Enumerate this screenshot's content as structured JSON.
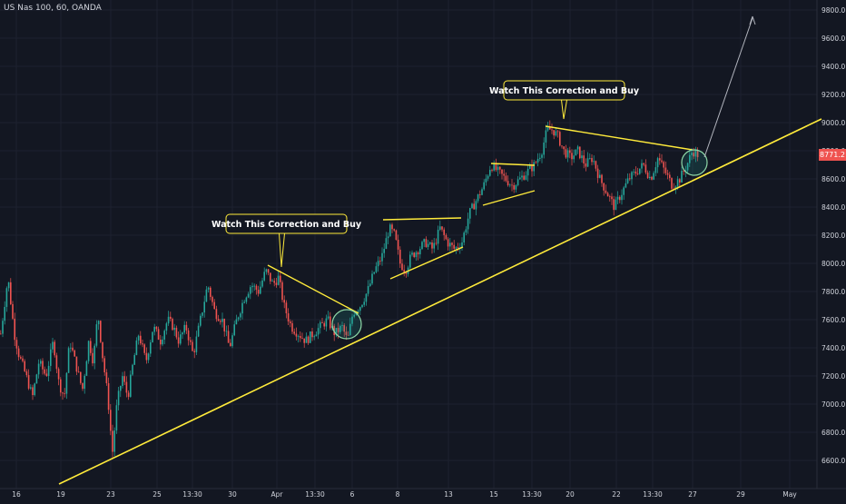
{
  "header": {
    "symbol_title": "US Nas 100, 60, OANDA"
  },
  "current_price": "8771.2",
  "colors": {
    "up": "#26a69a",
    "down": "#ef5350",
    "trend": "#ffeb3b",
    "bg": "#131722",
    "text": "#d1d4dc"
  },
  "chart_data": {
    "type": "candlestick",
    "yaxis": {
      "ticks": [
        6600,
        6800,
        7000,
        7200,
        7400,
        7600,
        7800,
        8000,
        8200,
        8400,
        8600,
        8800,
        9000,
        9200,
        9400,
        9600,
        9800
      ]
    },
    "xaxis": {
      "ticks": [
        "16",
        "19",
        "23",
        "25",
        "13:30",
        "30",
        "Apr",
        "13:30",
        "6",
        "8",
        "13",
        "15",
        "13:30",
        "20",
        "22",
        "13:30",
        "27",
        "29",
        "May"
      ]
    },
    "annotations": [
      {
        "text": "Watch This Correction and Buy"
      },
      {
        "text": "Watch This Correction and Buy"
      }
    ],
    "price_path": [
      [
        0,
        7500
      ],
      [
        8,
        7900
      ],
      [
        15,
        7500
      ],
      [
        20,
        7350
      ],
      [
        28,
        7200
      ],
      [
        35,
        7050
      ],
      [
        42,
        7300
      ],
      [
        50,
        7200
      ],
      [
        58,
        7450
      ],
      [
        64,
        7150
      ],
      [
        70,
        7050
      ],
      [
        76,
        7450
      ],
      [
        82,
        7300
      ],
      [
        90,
        7100
      ],
      [
        97,
        7450
      ],
      [
        102,
        7300
      ],
      [
        107,
        7650
      ],
      [
        112,
        7350
      ],
      [
        118,
        7050
      ],
      [
        123,
        6650
      ],
      [
        128,
        7000
      ],
      [
        134,
        7200
      ],
      [
        140,
        7050
      ],
      [
        146,
        7300
      ],
      [
        152,
        7500
      ],
      [
        160,
        7300
      ],
      [
        168,
        7550
      ],
      [
        176,
        7450
      ],
      [
        184,
        7600
      ],
      [
        190,
        7550
      ],
      [
        196,
        7450
      ],
      [
        204,
        7550
      ],
      [
        212,
        7350
      ],
      [
        220,
        7600
      ],
      [
        228,
        7850
      ],
      [
        236,
        7650
      ],
      [
        244,
        7600
      ],
      [
        252,
        7400
      ],
      [
        260,
        7600
      ],
      [
        268,
        7750
      ],
      [
        276,
        7850
      ],
      [
        284,
        7800
      ],
      [
        292,
        7950
      ],
      [
        300,
        7850
      ],
      [
        306,
        7900
      ],
      [
        312,
        7700
      ],
      [
        320,
        7550
      ],
      [
        328,
        7500
      ],
      [
        336,
        7450
      ],
      [
        344,
        7500
      ],
      [
        352,
        7550
      ],
      [
        360,
        7600
      ],
      [
        368,
        7500
      ],
      [
        376,
        7550
      ],
      [
        382,
        7450
      ],
      [
        388,
        7650
      ],
      [
        396,
        7700
      ],
      [
        404,
        7800
      ],
      [
        412,
        7950
      ],
      [
        420,
        8050
      ],
      [
        428,
        8250
      ],
      [
        434,
        8200
      ],
      [
        440,
        8000
      ],
      [
        446,
        7950
      ],
      [
        452,
        8050
      ],
      [
        460,
        8100
      ],
      [
        468,
        8150
      ],
      [
        476,
        8100
      ],
      [
        484,
        8250
      ],
      [
        492,
        8150
      ],
      [
        500,
        8100
      ],
      [
        508,
        8150
      ],
      [
        516,
        8350
      ],
      [
        524,
        8450
      ],
      [
        532,
        8550
      ],
      [
        540,
        8700
      ],
      [
        548,
        8650
      ],
      [
        556,
        8600
      ],
      [
        564,
        8550
      ],
      [
        572,
        8600
      ],
      [
        580,
        8650
      ],
      [
        588,
        8700
      ],
      [
        596,
        8800
      ],
      [
        602,
        8950
      ],
      [
        608,
        8950
      ],
      [
        614,
        8900
      ],
      [
        620,
        8800
      ],
      [
        628,
        8750
      ],
      [
        636,
        8800
      ],
      [
        644,
        8700
      ],
      [
        652,
        8750
      ],
      [
        660,
        8600
      ],
      [
        668,
        8500
      ],
      [
        676,
        8400
      ],
      [
        684,
        8500
      ],
      [
        692,
        8600
      ],
      [
        700,
        8650
      ],
      [
        708,
        8700
      ],
      [
        716,
        8600
      ],
      [
        724,
        8750
      ],
      [
        732,
        8650
      ],
      [
        740,
        8550
      ],
      [
        748,
        8600
      ],
      [
        756,
        8700
      ],
      [
        762,
        8800
      ],
      [
        768,
        8771
      ]
    ]
  }
}
